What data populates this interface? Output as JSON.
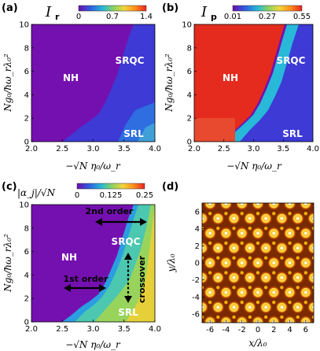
{
  "panels": {
    "a": {
      "letter": "(a)",
      "cbar_label": "I",
      "cbar_sub": "r",
      "cbar_ticks": [
        "0",
        "0.7",
        "1.4"
      ],
      "ylabel": "Ng₀/ħω_rλ₀²",
      "xlabel": "−√N η₀/ω_r",
      "region_labels": [
        "NH",
        "SRQC",
        "SRL"
      ]
    },
    "b": {
      "letter": "(b)",
      "cbar_label": "I",
      "cbar_sub": "p",
      "cbar_ticks": [
        "0.01",
        "0.27",
        "0.55"
      ],
      "ylabel": "Ng₀/ħω_rλ₀²",
      "xlabel": "−√N η₀/ω_r",
      "region_labels": [
        "NH",
        "SRQC",
        "SRL"
      ]
    },
    "c": {
      "letter": "(c)",
      "cbar_label": "|α_j|/√N",
      "cbar_ticks": [
        "0",
        "0.125",
        "0.25"
      ],
      "ylabel": "Ng₀/ħω_rλ₀²",
      "xlabel": "−√N η₀/ω_r",
      "region_labels": [
        "NH",
        "SRQC",
        "SRL"
      ],
      "annotations": [
        "2nd order",
        "1st order",
        "crossover"
      ]
    },
    "d": {
      "letter": "(d)",
      "xlabel": "x/λ₀",
      "ylabel": "y/λ₀"
    }
  },
  "chart_data": [
    {
      "type": "heatmap",
      "panel": "a",
      "title": "I_r",
      "xlabel": "−√N η₀/ω_r",
      "ylabel": "Ng₀/ħω_rλ₀²",
      "xlim": [
        2.0,
        4.0
      ],
      "ylim": [
        0,
        10
      ],
      "x_ticks": [
        2.0,
        2.5,
        3.0,
        3.5,
        4.0
      ],
      "y_ticks": [
        0,
        2,
        4,
        6,
        8,
        10
      ],
      "colorbar": {
        "min": 0,
        "max": 1.4,
        "ticks": [
          0,
          0.7,
          1.4
        ],
        "colors": [
          "#6a0dad",
          "#2f5fe0",
          "#27b9d4",
          "#8dd35f",
          "#f2d43a",
          "#ff8c1a",
          "#e52222"
        ]
      },
      "boundary": {
        "x": [
          2.5,
          2.62,
          2.75,
          2.9,
          3.0,
          3.1,
          3.2,
          3.3,
          3.4,
          3.5,
          3.58
        ],
        "y": [
          0,
          0.6,
          1.3,
          2.1,
          2.6,
          3.4,
          4.6,
          5.9,
          7.5,
          9.0,
          10
        ]
      },
      "values": {
        "NH": 0.0,
        "SRQC_edge": 0.25,
        "SRL_bottom": 0.85
      }
    },
    {
      "type": "heatmap",
      "panel": "b",
      "title": "I_p",
      "xlabel": "−√N η₀/ω_r",
      "ylabel": "Ng₀/ħω_rλ₀²",
      "xlim": [
        2.0,
        4.0
      ],
      "ylim": [
        0,
        10
      ],
      "x_ticks": [
        2.0,
        2.5,
        3.0,
        3.5,
        4.0
      ],
      "y_ticks": [
        0,
        2,
        4,
        6,
        8,
        10
      ],
      "colorbar": {
        "min": 0.01,
        "max": 0.55,
        "ticks": [
          0.01,
          0.27,
          0.55
        ],
        "colors": [
          "#6a0dad",
          "#2f5fe0",
          "#27b9d4",
          "#8dd35f",
          "#f2d43a",
          "#ff8c1a",
          "#e52222"
        ]
      },
      "boundary": {
        "x": [
          2.5,
          2.62,
          2.75,
          2.9,
          3.0,
          3.1,
          3.2,
          3.3,
          3.4,
          3.5,
          3.58
        ],
        "y": [
          0,
          0.6,
          1.3,
          2.1,
          2.6,
          3.4,
          4.6,
          5.9,
          7.5,
          9.0,
          10
        ]
      },
      "values": {
        "NH": 0.55,
        "SRQC": 0.15,
        "SRL": 0.01
      }
    },
    {
      "type": "heatmap",
      "panel": "c",
      "title": "|α_j|/√N",
      "xlabel": "−√N η₀/ω_r",
      "ylabel": "Ng₀/ħω_rλ₀²",
      "xlim": [
        2.0,
        4.0
      ],
      "ylim": [
        0,
        10
      ],
      "x_ticks": [
        2.0,
        2.5,
        3.0,
        3.5,
        4.0
      ],
      "y_ticks": [
        0,
        2,
        4,
        6,
        8,
        10
      ],
      "colorbar": {
        "min": 0,
        "max": 0.25,
        "ticks": [
          0,
          0.125,
          0.25
        ],
        "colors": [
          "#6a0dad",
          "#2f5fe0",
          "#27b9d4",
          "#8dd35f",
          "#f2d43a",
          "#ff8c1a",
          "#e52222"
        ]
      },
      "boundary": {
        "x": [
          2.5,
          2.62,
          2.75,
          2.9,
          3.0,
          3.1,
          3.2,
          3.3,
          3.4,
          3.5,
          3.58
        ],
        "y": [
          0,
          0.6,
          1.3,
          2.1,
          2.6,
          3.4,
          4.6,
          5.9,
          7.5,
          9.0,
          10
        ]
      },
      "values": {
        "NH": 0.0,
        "edge": 0.09,
        "right": 0.16
      }
    },
    {
      "type": "heatmap",
      "panel": "d",
      "xlabel": "x/λ₀",
      "ylabel": "y/λ₀",
      "xlim": [
        -7,
        7
      ],
      "ylim": [
        -7,
        7
      ],
      "x_ticks": [
        -6,
        -4,
        -2,
        0,
        2,
        4,
        6
      ],
      "y_ticks": [
        -6,
        -4,
        -2,
        0,
        2,
        4,
        6
      ],
      "pattern": "hexagonal",
      "colors": [
        "#5a1800",
        "#c84800",
        "#f0a000",
        "#ffe060"
      ]
    }
  ]
}
